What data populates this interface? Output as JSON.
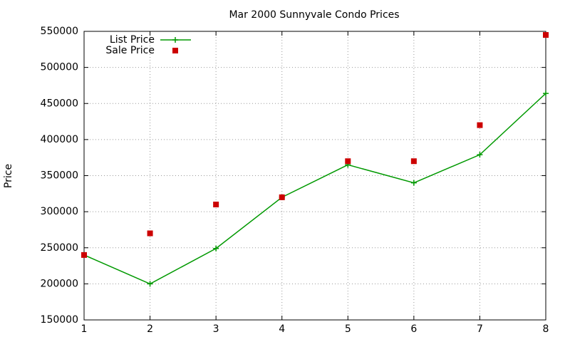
{
  "chart_data": {
    "type": "line",
    "title": "Mar 2000 Sunnyvale Condo Prices",
    "y_label": "Price",
    "x": [
      1,
      2,
      3,
      4,
      5,
      6,
      7,
      8
    ],
    "series": [
      {
        "name": "List Price",
        "color": "#009900",
        "style": "linespoints",
        "values": [
          240000,
          200000,
          249000,
          320000,
          365000,
          340000,
          379000,
          464000
        ]
      },
      {
        "name": "Sale Price",
        "color": "#cc0000",
        "style": "points",
        "values": [
          240000,
          270000,
          310000,
          320000,
          370000,
          370000,
          420000,
          545000
        ]
      }
    ],
    "xlim": [
      1,
      8
    ],
    "xticks": [
      1,
      2,
      3,
      4,
      5,
      6,
      7,
      8
    ],
    "ylim": [
      150000,
      550000
    ],
    "yticks": [
      150000,
      200000,
      250000,
      300000,
      350000,
      400000,
      450000,
      500000,
      550000
    ],
    "grid": true,
    "legend": "top-left"
  }
}
